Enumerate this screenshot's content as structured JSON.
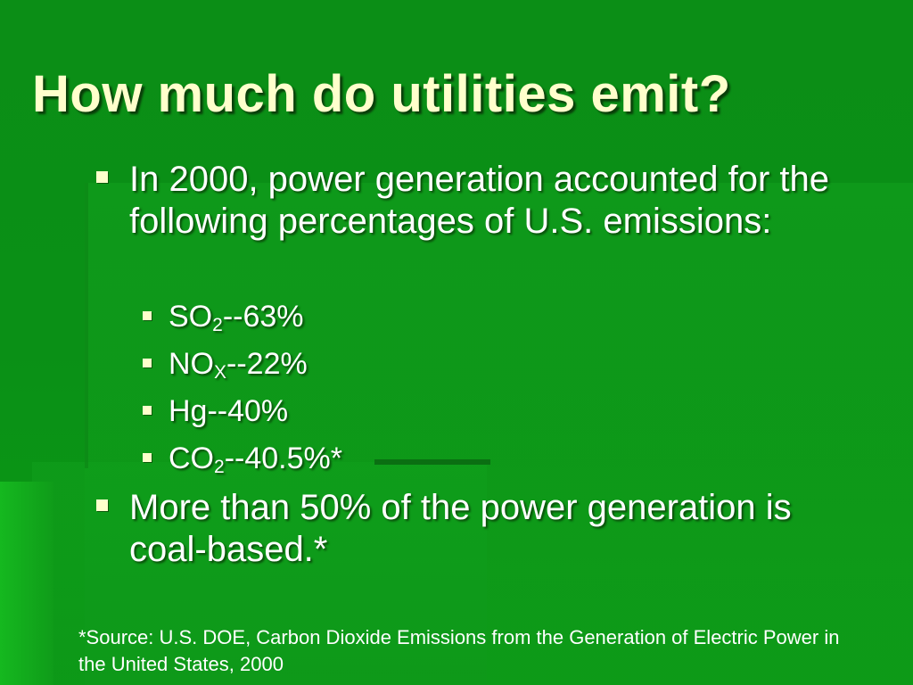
{
  "slide": {
    "title": "How much do utilities emit?",
    "bullets": [
      {
        "text": "In 2000, power generation accounted for the following percentages of U.S. emissions:",
        "sub_items": [
          {
            "base": "SO",
            "subscript": "2",
            "rest": "--63%"
          },
          {
            "base": "NO",
            "subscript": "X",
            "rest": "--22%"
          },
          {
            "base": "Hg",
            "subscript": "",
            "rest": "--40%"
          },
          {
            "base": "CO",
            "subscript": "2",
            "rest": "--40.5%*"
          }
        ]
      },
      {
        "text": "More than 50% of the power generation is coal-based.*"
      }
    ],
    "footnote": "*Source:  U.S. DOE, Carbon Dioxide Emissions from the Generation of Electric Power in the United States, 2000"
  },
  "colors": {
    "background": "#0a9016",
    "title": "#ffffcc",
    "body_text": "#ffffff",
    "bullet_marker": "#ffffcc"
  },
  "icons": {
    "bullet_marker": "square-bullet-icon"
  }
}
